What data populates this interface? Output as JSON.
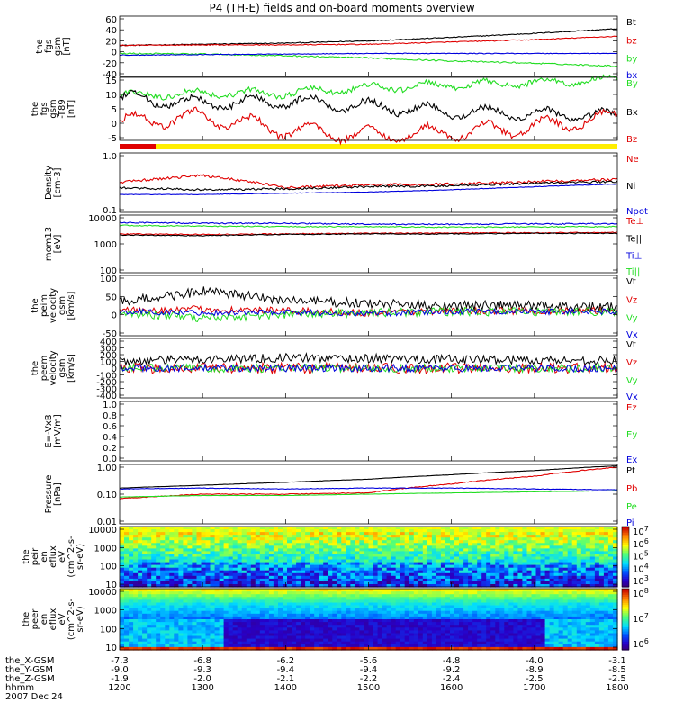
{
  "title": "P4 (TH-E) fields and on-board moments overview",
  "date": "2007 Dec 24",
  "xaxis": {
    "rows": [
      {
        "label": "the_X-GSM",
        "values": [
          "-7.3",
          "-6.8",
          "-6.2",
          "-5.6",
          "-4.8",
          "-4.0",
          "-3.1"
        ]
      },
      {
        "label": "the_Y-GSM",
        "values": [
          "-9.0",
          "-9.3",
          "-9.4",
          "-9.4",
          "-9.2",
          "-8.9",
          "-8.5"
        ]
      },
      {
        "label": "the_Z-GSM",
        "values": [
          "-1.9",
          "-2.0",
          "-2.1",
          "-2.2",
          "-2.4",
          "-2.5",
          "-2.5"
        ]
      },
      {
        "label": "hhmm",
        "values": [
          "1200",
          "1300",
          "1400",
          "1500",
          "1600",
          "1700",
          "1800"
        ]
      }
    ]
  },
  "colors": {
    "black": "#000000",
    "red": "#e00000",
    "green": "#22dd22",
    "blue": "#0000dd",
    "yellow": "#ffee00"
  },
  "chart_data": [
    {
      "type": "line",
      "id": "fgs",
      "ylabel": [
        "the",
        "fgs",
        "gsm",
        "[nT]"
      ],
      "yticks": [
        "60",
        "40",
        "20",
        "0",
        "-20",
        "-40"
      ],
      "ylim": [
        -40,
        65
      ],
      "legend": [
        {
          "name": "Bt",
          "color": "#000000"
        },
        {
          "name": "bz",
          "color": "#e00000"
        },
        {
          "name": "by",
          "color": "#22dd22"
        },
        {
          "name": "bx",
          "color": "#0000dd"
        }
      ],
      "series": [
        {
          "name": "Bt",
          "color": "#000000",
          "x": [
            1200,
            1300,
            1400,
            1500,
            1600,
            1700,
            1800
          ],
          "y": [
            14,
            16,
            18,
            22,
            28,
            35,
            43
          ]
        },
        {
          "name": "bz",
          "color": "#e00000",
          "x": [
            1200,
            1300,
            1400,
            1500,
            1600,
            1700,
            1800
          ],
          "y": [
            14,
            15,
            15,
            16,
            20,
            24,
            30
          ]
        },
        {
          "name": "by",
          "color": "#22dd22",
          "x": [
            1200,
            1300,
            1400,
            1500,
            1600,
            1700,
            1800
          ],
          "y": [
            0,
            -1,
            -4,
            -8,
            -13,
            -17,
            -22
          ]
        },
        {
          "name": "bx",
          "color": "#0000dd",
          "x": [
            1200,
            1300,
            1400,
            1500,
            1600,
            1700,
            1800
          ],
          "y": [
            -3,
            -2,
            -1,
            0,
            0,
            0,
            0
          ]
        }
      ]
    },
    {
      "type": "line",
      "id": "fgs_dsl",
      "ylabel": [
        "the",
        "fgs",
        "gsm",
        "-T89",
        "[nT]"
      ],
      "yticks": [
        "15",
        "10",
        "5",
        "0",
        "-5"
      ],
      "ylim": [
        -7,
        17
      ],
      "legend": [
        {
          "name": "By",
          "color": "#22dd22"
        },
        {
          "name": "Bx",
          "color": "#000000"
        },
        {
          "name": "Bz",
          "color": "#e00000"
        }
      ],
      "series": [
        {
          "name": "By",
          "color": "#22dd22",
          "x": [
            1200,
            1300,
            1400,
            1500,
            1600,
            1700,
            1800
          ],
          "y": [
            10,
            11,
            11,
            13,
            14,
            15,
            16
          ]
        },
        {
          "name": "Bx",
          "color": "#000000",
          "x": [
            1200,
            1300,
            1400,
            1500,
            1600,
            1700,
            1800
          ],
          "y": [
            9,
            7,
            8,
            6,
            4,
            3,
            2
          ]
        },
        {
          "name": "Bz",
          "color": "#e00000",
          "x": [
            1200,
            1300,
            1400,
            1500,
            1600,
            1700,
            1800
          ],
          "y": [
            0,
            2,
            -3,
            -5,
            -4,
            -2,
            2
          ]
        }
      ]
    },
    {
      "type": "line",
      "id": "density",
      "ylabel": [
        "Density",
        "[cm-3]"
      ],
      "yticks": [
        "1.0",
        "0.1"
      ],
      "ylim": [
        0.1,
        1.0
      ],
      "log": true,
      "legend": [
        {
          "name": "Ne",
          "color": "#e00000"
        },
        {
          "name": "Ni",
          "color": "#000000"
        },
        {
          "name": "Npot",
          "color": "#0000dd"
        }
      ],
      "series": [
        {
          "name": "Ne",
          "color": "#e00000",
          "x": [
            1200,
            1300,
            1400,
            1500,
            1600,
            1700,
            1800
          ],
          "y": [
            0.32,
            0.42,
            0.26,
            0.29,
            0.3,
            0.33,
            0.36
          ]
        },
        {
          "name": "Ni",
          "color": "#000000",
          "x": [
            1200,
            1300,
            1400,
            1500,
            1600,
            1700,
            1800
          ],
          "y": [
            0.26,
            0.24,
            0.25,
            0.27,
            0.28,
            0.31,
            0.33
          ]
        },
        {
          "name": "Npot",
          "color": "#0000dd",
          "x": [
            1200,
            1300,
            1400,
            1500,
            1600,
            1700,
            1800
          ],
          "y": [
            0.2,
            0.2,
            0.21,
            0.22,
            0.24,
            0.27,
            0.3
          ]
        }
      ]
    },
    {
      "type": "line",
      "id": "temperature",
      "ylabel": [
        "mom13",
        "[eV]"
      ],
      "yticks": [
        "10000",
        "1000",
        "100"
      ],
      "ylim": [
        50,
        12000
      ],
      "log": true,
      "legend": [
        {
          "name": "Te⊥",
          "color": "#e00000"
        },
        {
          "name": "Te||",
          "color": "#000000"
        },
        {
          "name": "Ti⊥",
          "color": "#0000dd"
        },
        {
          "name": "Ti||",
          "color": "#22dd22"
        }
      ],
      "series": [
        {
          "name": "Te⊥",
          "color": "#e00000",
          "x": [
            1200,
            1300,
            1400,
            1500,
            1600,
            1700,
            1800
          ],
          "y": [
            2000,
            1900,
            2000,
            2100,
            2200,
            2200,
            2300
          ]
        },
        {
          "name": "Te||",
          "color": "#000000",
          "x": [
            1200,
            1300,
            1400,
            1500,
            1600,
            1700,
            1800
          ],
          "y": [
            1800,
            1700,
            1900,
            2000,
            2000,
            2100,
            2100
          ]
        },
        {
          "name": "Ti⊥",
          "color": "#0000dd",
          "x": [
            1200,
            1300,
            1400,
            1500,
            1600,
            1700,
            1800
          ],
          "y": [
            6000,
            5500,
            5500,
            5000,
            5000,
            5200,
            5300
          ]
        },
        {
          "name": "Ti||",
          "color": "#22dd22",
          "x": [
            1200,
            1300,
            1400,
            1500,
            1600,
            1700,
            1800
          ],
          "y": [
            4500,
            4200,
            4000,
            4000,
            3800,
            3900,
            4000
          ]
        }
      ]
    },
    {
      "type": "line",
      "id": "peim_velocity",
      "ylabel": [
        "the",
        "peim",
        "velocity",
        "gsm",
        "[km/s]"
      ],
      "yticks": [
        "100",
        "50",
        "0",
        "-50"
      ],
      "ylim": [
        -70,
        100
      ],
      "legend": [
        {
          "name": "Vt",
          "color": "#000000"
        },
        {
          "name": "Vz",
          "color": "#e00000"
        },
        {
          "name": "Vy",
          "color": "#22dd22"
        },
        {
          "name": "Vx",
          "color": "#0000dd"
        }
      ],
      "series": [
        {
          "name": "Vt",
          "color": "#000000",
          "x": [
            1200,
            1300,
            1400,
            1500,
            1600,
            1700,
            1800
          ],
          "y": [
            25,
            55,
            30,
            20,
            15,
            15,
            12
          ]
        },
        {
          "name": "Vz",
          "color": "#e00000",
          "x": [
            1200,
            1300,
            1400,
            1500,
            1600,
            1700,
            1800
          ],
          "y": [
            0,
            5,
            0,
            -5,
            0,
            0,
            0
          ]
        },
        {
          "name": "Vy",
          "color": "#22dd22",
          "x": [
            1200,
            1300,
            1400,
            1500,
            1600,
            1700,
            1800
          ],
          "y": [
            -5,
            -20,
            -10,
            -5,
            -2,
            -2,
            -2
          ]
        },
        {
          "name": "Vx",
          "color": "#0000dd",
          "x": [
            1200,
            1300,
            1400,
            1500,
            1600,
            1700,
            1800
          ],
          "y": [
            -2,
            -5,
            -3,
            -8,
            -2,
            -2,
            -2
          ]
        }
      ]
    },
    {
      "type": "line",
      "id": "peem_velocity",
      "ylabel": [
        "the",
        "peem",
        "velocity",
        "gsm",
        "[km/s]"
      ],
      "yticks": [
        "400",
        "300",
        "200",
        "100",
        "0",
        "-100",
        "-200",
        "-300",
        "-400"
      ],
      "ylim": [
        -400,
        400
      ],
      "legend": [
        {
          "name": "Vt",
          "color": "#000000"
        },
        {
          "name": "Vz",
          "color": "#e00000"
        },
        {
          "name": "Vy",
          "color": "#22dd22"
        },
        {
          "name": "Vx",
          "color": "#0000dd"
        }
      ],
      "series": [
        {
          "name": "Vt",
          "color": "#000000",
          "x": [
            1200,
            1300,
            1400,
            1500,
            1600,
            1700,
            1800
          ],
          "y": [
            90,
            120,
            140,
            130,
            120,
            110,
            100
          ]
        },
        {
          "name": "Vz",
          "color": "#e00000",
          "x": [
            1200,
            1300,
            1400,
            1500,
            1600,
            1700,
            1800
          ],
          "y": [
            0,
            0,
            0,
            0,
            0,
            0,
            0
          ]
        },
        {
          "name": "Vy",
          "color": "#22dd22",
          "x": [
            1200,
            1300,
            1400,
            1500,
            1600,
            1700,
            1800
          ],
          "y": [
            0,
            0,
            0,
            0,
            0,
            0,
            0
          ]
        },
        {
          "name": "Vx",
          "color": "#0000dd",
          "x": [
            1200,
            1300,
            1400,
            1500,
            1600,
            1700,
            1800
          ],
          "y": [
            0,
            0,
            0,
            0,
            0,
            0,
            0
          ]
        }
      ]
    },
    {
      "type": "line",
      "id": "efield",
      "ylabel": [
        "E=-VxB",
        "[mV/m]"
      ],
      "yticks": [
        "1.0",
        "0.8",
        "0.6",
        "0.4",
        "0.2",
        "0.0"
      ],
      "ylim": [
        0,
        1
      ],
      "legend": [
        {
          "name": "Ez",
          "color": "#e00000"
        },
        {
          "name": "Ey",
          "color": "#22dd22"
        },
        {
          "name": "Ex",
          "color": "#0000dd"
        }
      ],
      "series": []
    },
    {
      "type": "line",
      "id": "pressure",
      "ylabel": [
        "Pressure",
        "[nPa]"
      ],
      "yticks": [
        "1.00",
        "0.10",
        "0.01"
      ],
      "ylim": [
        0.01,
        1.0
      ],
      "log": true,
      "legend": [
        {
          "name": "Pt",
          "color": "#000000"
        },
        {
          "name": "Pb",
          "color": "#e00000"
        },
        {
          "name": "Pe",
          "color": "#22dd22"
        },
        {
          "name": "Pi",
          "color": "#0000dd"
        }
      ],
      "series": [
        {
          "name": "Pt",
          "color": "#000000",
          "x": [
            1200,
            1300,
            1400,
            1500,
            1600,
            1700,
            1800
          ],
          "y": [
            0.16,
            0.2,
            0.25,
            0.32,
            0.45,
            0.62,
            0.9
          ]
        },
        {
          "name": "Pb",
          "color": "#e00000",
          "x": [
            1200,
            1300,
            1400,
            1500,
            1600,
            1700,
            1800
          ],
          "y": [
            0.07,
            0.1,
            0.1,
            0.11,
            0.22,
            0.4,
            0.8
          ]
        },
        {
          "name": "Pe",
          "color": "#22dd22",
          "x": [
            1200,
            1300,
            1400,
            1500,
            1600,
            1700,
            1800
          ],
          "y": [
            0.08,
            0.09,
            0.09,
            0.1,
            0.11,
            0.12,
            0.13
          ]
        },
        {
          "name": "Pi",
          "color": "#0000dd",
          "x": [
            1200,
            1300,
            1400,
            1500,
            1600,
            1700,
            1800
          ],
          "y": [
            0.15,
            0.16,
            0.15,
            0.16,
            0.16,
            0.15,
            0.14
          ]
        }
      ]
    },
    {
      "type": "heatmap",
      "id": "peir",
      "ylabel": [
        "the",
        "peir",
        "en",
        "eflux",
        "eV",
        "(cm^2-s-",
        "sr-eV)"
      ],
      "yticks": [
        "10000",
        "1000",
        "100",
        "10"
      ],
      "ylim": [
        7,
        25000
      ],
      "log": true,
      "colorbar": {
        "ticks": [
          "10^7",
          "10^6",
          "10^5",
          "10^4",
          "10^3"
        ],
        "exponents": [
          7,
          6,
          5,
          4,
          3
        ]
      }
    },
    {
      "type": "heatmap",
      "id": "peer",
      "ylabel": [
        "the",
        "peer",
        "en",
        "eflux",
        "eV",
        "(cm^2-s-",
        "sr-eV)"
      ],
      "yticks": [
        "10000",
        "1000",
        "100",
        "10"
      ],
      "ylim": [
        7,
        25000
      ],
      "log": true,
      "colorbar": {
        "ticks": [
          "10^8",
          "10^7",
          "10^6"
        ],
        "exponents": [
          8,
          7,
          6
        ]
      }
    }
  ]
}
